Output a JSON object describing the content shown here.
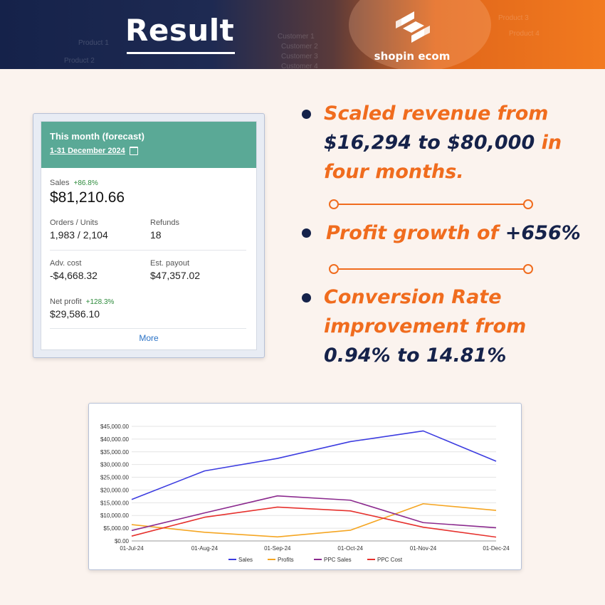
{
  "header": {
    "title": "Result",
    "brand": "shopin ecom",
    "bg_text": [
      "Customer 1",
      "Customer 2",
      "Customer 3",
      "Customer 4",
      "Product 1",
      "Product 2",
      "Product 3",
      "Product 4"
    ]
  },
  "stats_card": {
    "title": "This month (forecast)",
    "date_range": "1-31 December 2024",
    "sales_label": "Sales",
    "sales_delta": "+86.8%",
    "sales_value": "$81,210.66",
    "orders_label": "Orders / Units",
    "orders_value": "1,983 / 2,104",
    "refunds_label": "Refunds",
    "refunds_value": "18",
    "adv_cost_label": "Adv. cost",
    "adv_cost_value": "-$4,668.32",
    "payout_label": "Est. payout",
    "payout_value": "$47,357.02",
    "net_profit_label": "Net profit",
    "net_profit_delta": "+128.3%",
    "net_profit_value": "$29,586.10",
    "more_label": "More"
  },
  "bullets": {
    "b1_line1": "Scaled revenue from",
    "b1_val1": "$16,294",
    "b1_to": "to",
    "b1_val2": "$80,000",
    "b1_in": "in",
    "b1_line3": "four months.",
    "b2_text": "Profit growth of",
    "b2_val": "+656%",
    "b3_line1": "Conversion Rate",
    "b3_line2": "improvement from",
    "b3_line3": "0.94% to 14.81%"
  },
  "colors": {
    "orange": "#f06c1e",
    "navy": "#15224a",
    "card_header": "#5aa996",
    "positive": "#2e8b3c"
  },
  "chart_data": {
    "type": "line",
    "categories": [
      "01-Jul-24",
      "01-Aug-24",
      "01-Sep-24",
      "01-Oct-24",
      "01-Nov-24",
      "01-Dec-24"
    ],
    "ylim": [
      0,
      45000
    ],
    "yticks": [
      "$0.00",
      "$5,000.00",
      "$10,000.00",
      "$15,000.00",
      "$20,000.00",
      "$25,000.00",
      "$30,000.00",
      "$35,000.00",
      "$40,000.00",
      "$45,000.00"
    ],
    "grid": true,
    "legend_position": "bottom",
    "series": [
      {
        "name": "Sales",
        "color": "#3c3ce0",
        "values": [
          16294,
          27500,
          32400,
          39000,
          43200,
          31300
        ]
      },
      {
        "name": "Profits",
        "color": "#f5a623",
        "values": [
          6400,
          3400,
          1600,
          4200,
          14600,
          12000
        ]
      },
      {
        "name": "PPC Sales",
        "color": "#8b2a8e",
        "values": [
          4100,
          11000,
          17700,
          16000,
          7200,
          5200
        ]
      },
      {
        "name": "PPC Cost",
        "color": "#e6312d",
        "values": [
          1900,
          9300,
          13300,
          11800,
          5400,
          1500
        ]
      }
    ]
  }
}
